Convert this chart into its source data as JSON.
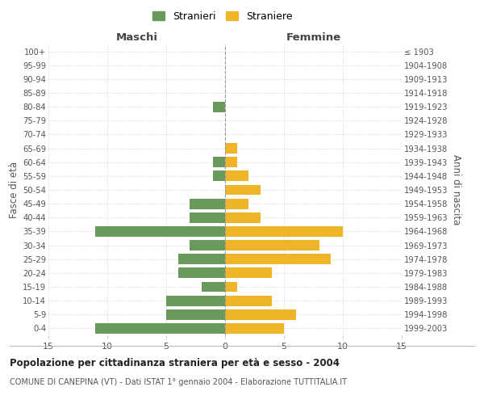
{
  "age_groups": [
    "0-4",
    "5-9",
    "10-14",
    "15-19",
    "20-24",
    "25-29",
    "30-34",
    "35-39",
    "40-44",
    "45-49",
    "50-54",
    "55-59",
    "60-64",
    "65-69",
    "70-74",
    "75-79",
    "80-84",
    "85-89",
    "90-94",
    "95-99",
    "100+"
  ],
  "birth_years": [
    "1999-2003",
    "1994-1998",
    "1989-1993",
    "1984-1988",
    "1979-1983",
    "1974-1978",
    "1969-1973",
    "1964-1968",
    "1959-1963",
    "1954-1958",
    "1949-1953",
    "1944-1948",
    "1939-1943",
    "1934-1938",
    "1929-1933",
    "1924-1928",
    "1919-1923",
    "1914-1918",
    "1909-1913",
    "1904-1908",
    "≤ 1903"
  ],
  "maschi": [
    11,
    5,
    5,
    2,
    4,
    4,
    3,
    11,
    3,
    3,
    0,
    1,
    1,
    0,
    0,
    0,
    1,
    0,
    0,
    0,
    0
  ],
  "femmine": [
    5,
    6,
    4,
    1,
    4,
    9,
    8,
    10,
    3,
    2,
    3,
    2,
    1,
    1,
    0,
    0,
    0,
    0,
    0,
    0,
    0
  ],
  "maschi_color": "#6a9a5b",
  "femmine_color": "#f0b429",
  "bar_height": 0.75,
  "xlim": 15,
  "title": "Popolazione per cittadinanza straniera per età e sesso - 2004",
  "subtitle": "COMUNE DI CANEPINA (VT) - Dati ISTAT 1° gennaio 2004 - Elaborazione TUTTITALIA.IT",
  "left_header": "Maschi",
  "right_header": "Femmine",
  "left_ylabel": "Fasce di età",
  "right_ylabel": "Anni di nascita",
  "legend_stranieri": "Stranieri",
  "legend_straniere": "Straniere",
  "background_color": "#ffffff",
  "grid_color": "#cccccc",
  "text_color": "#555555",
  "header_color": "#444444"
}
